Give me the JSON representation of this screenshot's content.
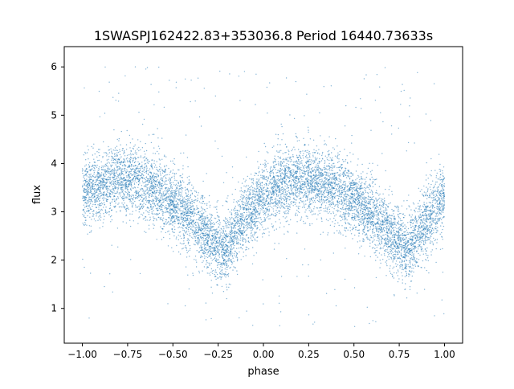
{
  "chart_data": {
    "type": "scatter",
    "title": "1SWASPJ162422.83+353036.8 Period 16440.73633s",
    "xlabel": "phase",
    "ylabel": "flux",
    "xlim": [
      -1.1,
      1.1
    ],
    "ylim": [
      0.28,
      6.42
    ],
    "xticks": [
      -1.0,
      -0.75,
      -0.5,
      -0.25,
      0.0,
      0.25,
      0.5,
      0.75,
      1.0
    ],
    "xtick_labels": [
      "−1.00",
      "−0.75",
      "−0.50",
      "−0.25",
      "0.00",
      "0.25",
      "0.50",
      "0.75",
      "1.00"
    ],
    "yticks": [
      1,
      2,
      3,
      4,
      5,
      6
    ],
    "ytick_labels": [
      "1",
      "2",
      "3",
      "4",
      "5",
      "6"
    ],
    "grid": false,
    "legend": "none",
    "point_color": "#1f77b4",
    "trend_points": [
      {
        "x": -1.0,
        "y": 3.35
      },
      {
        "x": -0.9,
        "y": 3.55
      },
      {
        "x": -0.8,
        "y": 3.7
      },
      {
        "x": -0.7,
        "y": 3.65
      },
      {
        "x": -0.6,
        "y": 3.5
      },
      {
        "x": -0.5,
        "y": 3.2
      },
      {
        "x": -0.4,
        "y": 2.9
      },
      {
        "x": -0.3,
        "y": 2.45
      },
      {
        "x": -0.22,
        "y": 2.2
      },
      {
        "x": -0.1,
        "y": 2.9
      },
      {
        "x": 0.0,
        "y": 3.3
      },
      {
        "x": 0.1,
        "y": 3.55
      },
      {
        "x": 0.25,
        "y": 3.7
      },
      {
        "x": 0.4,
        "y": 3.5
      },
      {
        "x": 0.5,
        "y": 3.25
      },
      {
        "x": 0.6,
        "y": 2.95
      },
      {
        "x": 0.7,
        "y": 2.55
      },
      {
        "x": 0.78,
        "y": 2.25
      },
      {
        "x": 0.9,
        "y": 2.8
      },
      {
        "x": 1.0,
        "y": 3.35
      }
    ]
  }
}
